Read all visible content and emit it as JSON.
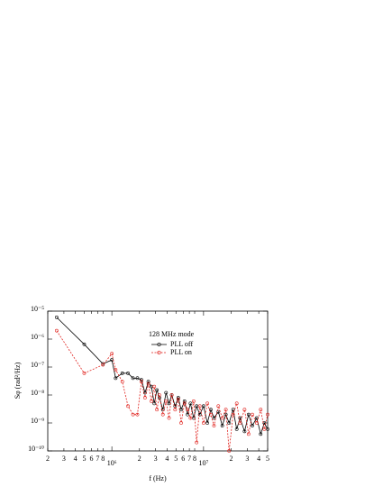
{
  "chart_data": {
    "type": "line",
    "xlabel": "f (Hz)",
    "ylabel": "Sφ (rad²/Hz)",
    "legend_title": "128 MHz mode",
    "legend": "upper right",
    "log_x": true,
    "log_y": true,
    "xlim": [
      200000,
      50000000
    ],
    "ylim": [
      1e-10,
      1e-05
    ],
    "xticks": [
      {
        "value": 200000,
        "label": "2"
      },
      {
        "value": 300000,
        "label": "3"
      },
      {
        "value": 400000,
        "label": "4"
      },
      {
        "value": 500000,
        "label": "5"
      },
      {
        "value": 600000,
        "label": "6"
      },
      {
        "value": 700000,
        "label": "7"
      },
      {
        "value": 800000,
        "label": "8"
      },
      {
        "value": 1000000,
        "label": "10⁶"
      },
      {
        "value": 2000000,
        "label": "2"
      },
      {
        "value": 3000000,
        "label": "3"
      },
      {
        "value": 4000000,
        "label": "4"
      },
      {
        "value": 5000000,
        "label": "5"
      },
      {
        "value": 6000000,
        "label": "6"
      },
      {
        "value": 7000000,
        "label": "7"
      },
      {
        "value": 8000000,
        "label": "8"
      },
      {
        "value": 10000000,
        "label": "10⁷"
      },
      {
        "value": 20000000,
        "label": "2"
      },
      {
        "value": 30000000,
        "label": "3"
      },
      {
        "value": 40000000,
        "label": "4"
      },
      {
        "value": 50000000,
        "label": "5"
      }
    ],
    "yticks": [
      {
        "value": 1e-10,
        "label": "10⁻¹⁰"
      },
      {
        "value": 1e-09,
        "label": "10⁻⁹"
      },
      {
        "value": 1e-08,
        "label": "10⁻⁸"
      },
      {
        "value": 1e-07,
        "label": "10⁻⁷"
      },
      {
        "value": 1e-06,
        "label": "10⁻⁶"
      },
      {
        "value": 1e-05,
        "label": "10⁻⁵"
      }
    ],
    "x": [
      250000,
      500000,
      800000,
      1000000,
      1100000,
      1300000,
      1500000,
      1700000,
      1900000,
      2100000,
      2300000,
      2500000,
      2700000,
      2900000,
      3100000,
      3300000,
      3600000,
      3900000,
      4200000,
      4500000,
      4900000,
      5300000,
      5700000,
      6200000,
      6700000,
      7200000,
      7800000,
      8400000,
      9100000,
      10000000,
      11000000,
      12000000,
      13000000,
      14500000,
      16000000,
      17500000,
      19000000,
      21000000,
      23000000,
      25000000,
      28000000,
      31000000,
      34000000,
      38000000,
      42000000,
      46000000,
      50000000
    ],
    "series": [
      {
        "name": "PLL off",
        "color": "#000000",
        "dash": false,
        "values": [
          6e-06,
          6.5e-07,
          1.3e-07,
          1.8e-07,
          4e-08,
          6e-08,
          6e-08,
          4e-08,
          4e-08,
          3.5e-08,
          1.2e-08,
          3e-08,
          2e-08,
          5e-09,
          1.5e-08,
          8e-09,
          3e-09,
          1.2e-08,
          5e-09,
          1e-08,
          4e-09,
          8e-09,
          3e-09,
          6e-09,
          2e-09,
          5e-09,
          1.5e-09,
          4e-09,
          2e-09,
          4e-09,
          1e-09,
          3e-09,
          1.5e-09,
          2.5e-09,
          8e-10,
          2e-09,
          1e-09,
          3e-09,
          6e-10,
          1.5e-09,
          5e-10,
          2e-09,
          8e-10,
          1.5e-09,
          4e-10,
          1e-09,
          6e-10
        ]
      },
      {
        "name": "PLL on",
        "color": "#e0201b",
        "dash": true,
        "values": [
          2e-06,
          6e-08,
          1.2e-07,
          3e-07,
          8e-08,
          3e-08,
          4e-09,
          2e-09,
          2e-09,
          3e-08,
          8e-09,
          2.5e-08,
          6e-09,
          2e-08,
          3e-09,
          1e-08,
          2e-09,
          6e-09,
          1.5e-09,
          1e-08,
          3e-09,
          7e-09,
          1e-09,
          5e-09,
          3e-09,
          1.5e-09,
          6e-09,
          2e-10,
          4e-09,
          1e-09,
          5e-09,
          2e-09,
          8e-10,
          4e-09,
          1.5e-09,
          3e-09,
          1e-10,
          2e-09,
          5e-09,
          1e-09,
          3e-09,
          4e-10,
          2e-09,
          1e-09,
          3e-09,
          6e-10,
          2e-09
        ]
      }
    ]
  }
}
